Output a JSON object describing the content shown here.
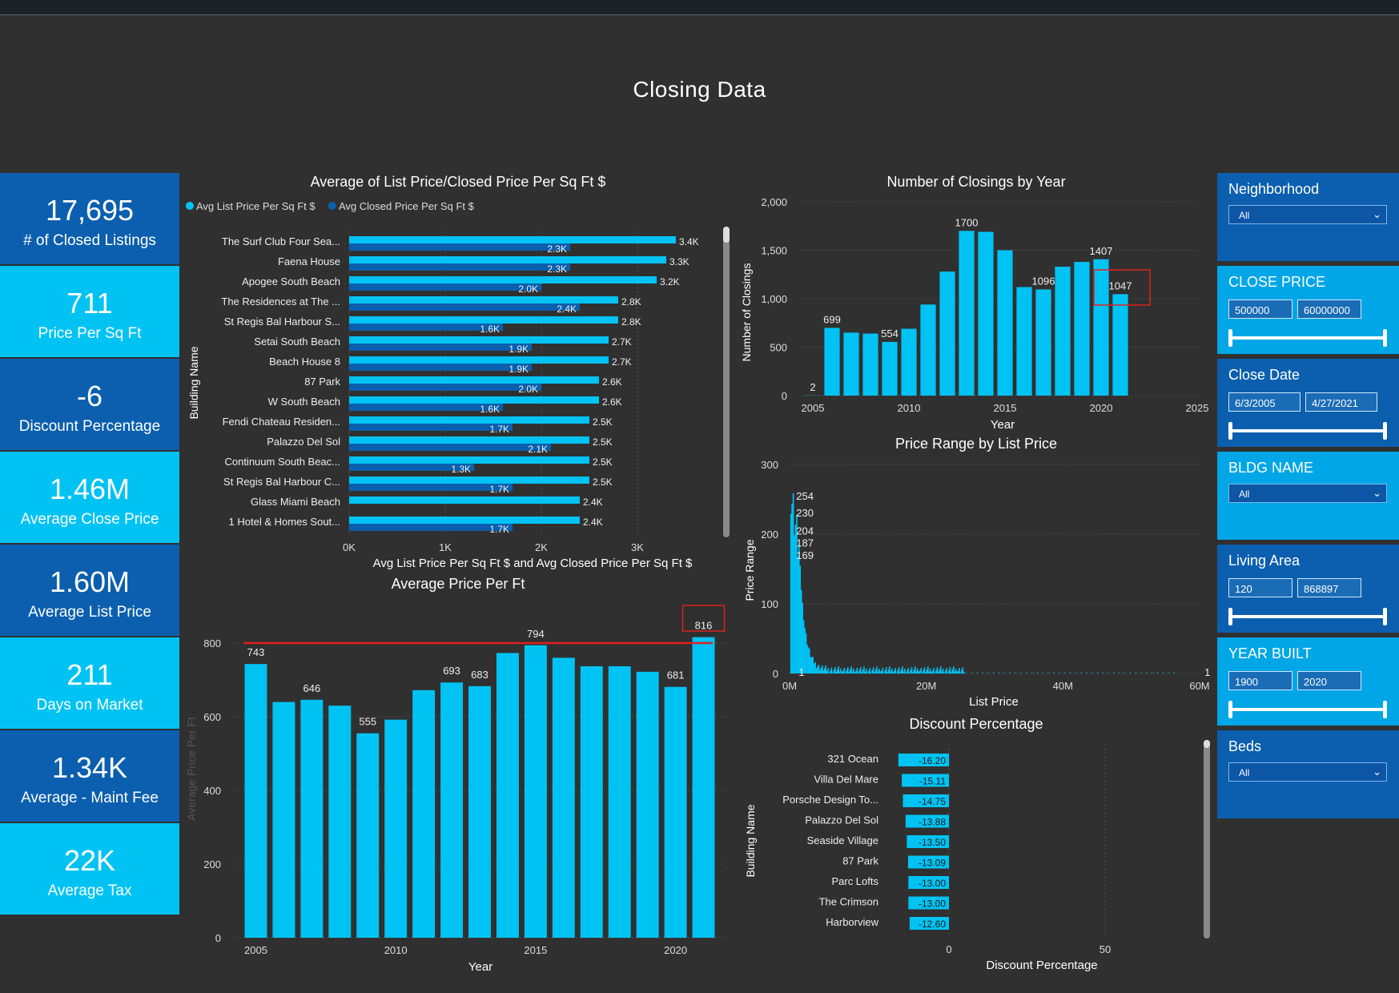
{
  "page": {
    "title": "Closing Data"
  },
  "kpis": [
    {
      "value": "17,695",
      "label": "# of Closed Listings",
      "style": "dark"
    },
    {
      "value": "711",
      "label": "Price Per Sq Ft",
      "style": "light"
    },
    {
      "value": "-6",
      "label": "Discount Percentage",
      "style": "dark"
    },
    {
      "value": "1.46M",
      "label": "Average Close Price",
      "style": "light"
    },
    {
      "value": "1.60M",
      "label": "Average List Price",
      "style": "dark"
    },
    {
      "value": "211",
      "label": "Days on Market",
      "style": "light"
    },
    {
      "value": "1.34K",
      "label": "Average - Maint Fee",
      "style": "dark"
    },
    {
      "value": "22K",
      "label": "Average Tax",
      "style": "light"
    }
  ],
  "filters": [
    {
      "title": "Neighborhood",
      "type": "dropdown",
      "value": "All",
      "style": "dark"
    },
    {
      "title": "CLOSE PRICE",
      "type": "range",
      "min": "500000",
      "max": "60000000",
      "style": "light"
    },
    {
      "title": "Close Date",
      "type": "range",
      "min": "6/3/2005",
      "max": "4/27/2021",
      "style": "dark"
    },
    {
      "title": "BLDG NAME",
      "type": "dropdown",
      "value": "All",
      "style": "light"
    },
    {
      "title": "Living Area",
      "type": "range",
      "min": "120",
      "max": "868897",
      "style": "dark"
    },
    {
      "title": "YEAR BUILT",
      "type": "range",
      "min": "1900",
      "max": "2020",
      "style": "light"
    },
    {
      "title": "Beds",
      "type": "dropdown",
      "value": "All",
      "style": "dark"
    }
  ],
  "colors": {
    "background": "#303030",
    "bar": "#00c3f4",
    "bar_dark": "#0b5fae",
    "reference_line": "#e02020",
    "highlight_box": "#e02020",
    "text": "#ffffff",
    "grid": "#6b6b6b"
  },
  "icons": {
    "dropdown": "chevron-down-icon"
  },
  "chart_data": [
    {
      "id": "list_closed_ppsf",
      "type": "bar",
      "orientation": "horizontal",
      "title": "Average of List Price/Closed Price Per Sq Ft $",
      "xlabel": "Avg List Price Per Sq Ft $ and Avg Closed Price Per Sq Ft $",
      "ylabel": "Building Name",
      "xlim": [
        0,
        3700
      ],
      "xticks": [
        0,
        1000,
        2000,
        3000
      ],
      "xtick_labels": [
        "0K",
        "1K",
        "2K",
        "3K"
      ],
      "categories": [
        "The Surf Club Four Sea...",
        "Faena House",
        "Apogee South Beach",
        "The Residences at The ...",
        "St Regis Bal Harbour S...",
        "Setai South Beach",
        "Beach House 8",
        "87 Park",
        "W South Beach",
        "Fendi Chateau Residen...",
        "Palazzo Del Sol",
        "Continuum South Beac...",
        "St Regis Bal Harbour C...",
        "Glass Miami Beach",
        "1 Hotel & Homes Sout..."
      ],
      "series": [
        {
          "name": "Avg List Price Per Sq Ft $",
          "color": "#00c3f4",
          "values": [
            3400,
            3300,
            3200,
            2800,
            2800,
            2700,
            2700,
            2600,
            2600,
            2500,
            2500,
            2500,
            2500,
            2400,
            2400
          ],
          "labels": [
            "3.4K",
            "3.3K",
            "3.2K",
            "2.8K",
            "2.8K",
            "2.7K",
            "2.7K",
            "2.6K",
            "2.6K",
            "2.5K",
            "2.5K",
            "2.5K",
            "2.5K",
            "2.4K",
            "2.4K"
          ]
        },
        {
          "name": "Avg Closed Price Per Sq Ft $",
          "color": "#0b5fae",
          "values": [
            2300,
            2300,
            2000,
            2400,
            1600,
            1900,
            1900,
            2000,
            1600,
            1700,
            2100,
            1300,
            1700,
            null,
            1700
          ],
          "labels": [
            "2.3K",
            "2.3K",
            "2.0K",
            "2.4K",
            "1.6K",
            "1.9K",
            "1.9K",
            "2.0K",
            "1.6K",
            "1.7K",
            "2.1K",
            "1.3K",
            "1.7K",
            "",
            "1.7K"
          ]
        }
      ],
      "legend_position": "top-left"
    },
    {
      "id": "closings_by_year",
      "type": "bar",
      "title": "Number of Closings by Year",
      "xlabel": "Year",
      "ylabel": "Number of Closings",
      "xlim": [
        2004.5,
        2025
      ],
      "ylim": [
        0,
        2000
      ],
      "yticks": [
        0,
        500,
        1000,
        1500,
        2000
      ],
      "ytick_labels": [
        "0",
        "500",
        "1,000",
        "1,500",
        "2,000"
      ],
      "xticks": [
        2005,
        2010,
        2015,
        2020,
        2025
      ],
      "x": [
        2005,
        2006,
        2007,
        2008,
        2009,
        2010,
        2011,
        2012,
        2013,
        2014,
        2015,
        2016,
        2017,
        2018,
        2019,
        2020,
        2021
      ],
      "values": [
        2,
        699,
        650,
        640,
        554,
        690,
        940,
        1280,
        1700,
        1690,
        1500,
        1120,
        1096,
        1330,
        1380,
        1407,
        1047
      ],
      "labels": [
        "2",
        "699",
        "",
        "",
        "554",
        "",
        "",
        "",
        "1700",
        "",
        "",
        "",
        "1096",
        "",
        "",
        "1407",
        "1047"
      ],
      "highlight_index": 16
    },
    {
      "id": "price_range_by_list_price",
      "type": "bar",
      "title": "Price Range by List Price",
      "xlabel": "List Price",
      "ylabel": "Price Range",
      "xlim": [
        0,
        60
      ],
      "ylim": [
        0,
        300
      ],
      "xticks": [
        0,
        20,
        40,
        60
      ],
      "xtick_labels": [
        "0M",
        "20M",
        "40M",
        "60M"
      ],
      "yticks": [
        0,
        100,
        200,
        300
      ],
      "peak_labels": [
        {
          "x": 0.6,
          "y": 254,
          "label": "254"
        },
        {
          "x": 0.6,
          "y": 230,
          "label": "230"
        },
        {
          "x": 0.6,
          "y": 204,
          "label": "204"
        },
        {
          "x": 0.6,
          "y": 187,
          "label": "187"
        },
        {
          "x": 0.6,
          "y": 169,
          "label": "169"
        },
        {
          "x": 0.1,
          "y": 1,
          "label": "1"
        },
        {
          "x": 59.5,
          "y": 1,
          "label": "1"
        }
      ]
    },
    {
      "id": "average_price_per_ft",
      "type": "bar",
      "title": "Average Price Per Ft",
      "xlabel": "Year",
      "ylabel": "Average Price Per Ft",
      "ylim": [
        0,
        850
      ],
      "yticks": [
        0,
        200,
        400,
        600,
        800
      ],
      "xticks": [
        2005,
        2010,
        2015,
        2020
      ],
      "x": [
        2005,
        2006,
        2007,
        2008,
        2009,
        2010,
        2011,
        2012,
        2013,
        2014,
        2015,
        2016,
        2017,
        2018,
        2019,
        2020,
        2021
      ],
      "values": [
        743,
        640,
        646,
        630,
        555,
        592,
        672,
        693,
        683,
        773,
        794,
        760,
        737,
        737,
        722,
        681,
        816
      ],
      "labels": [
        "743",
        "",
        "646",
        "",
        "555",
        "",
        "",
        "693",
        "683",
        "",
        "794",
        "",
        "",
        "",
        "",
        "681",
        "816"
      ],
      "reference_line": 800,
      "highlight_index": 16
    },
    {
      "id": "discount_percentage",
      "type": "bar",
      "orientation": "horizontal",
      "title": "Discount Percentage",
      "xlabel": "Discount Percentage",
      "ylabel": "Building Name",
      "xticks": [
        0,
        50
      ],
      "categories": [
        "321 Ocean",
        "Villa Del Mare",
        "Porsche Design To...",
        "Palazzo Del Sol",
        "Seaside Village",
        "87 Park",
        "Parc Lofts",
        "The Crimson",
        "Harborview"
      ],
      "values": [
        -16.2,
        -15.11,
        -14.75,
        -13.88,
        -13.5,
        -13.09,
        -13.0,
        -13.0,
        -12.6
      ],
      "labels": [
        "-16.20",
        "-15.11",
        "-14.75",
        "-13.88",
        "-13.50",
        "-13.09",
        "-13.00",
        "-13.00",
        "-12.60"
      ]
    }
  ]
}
